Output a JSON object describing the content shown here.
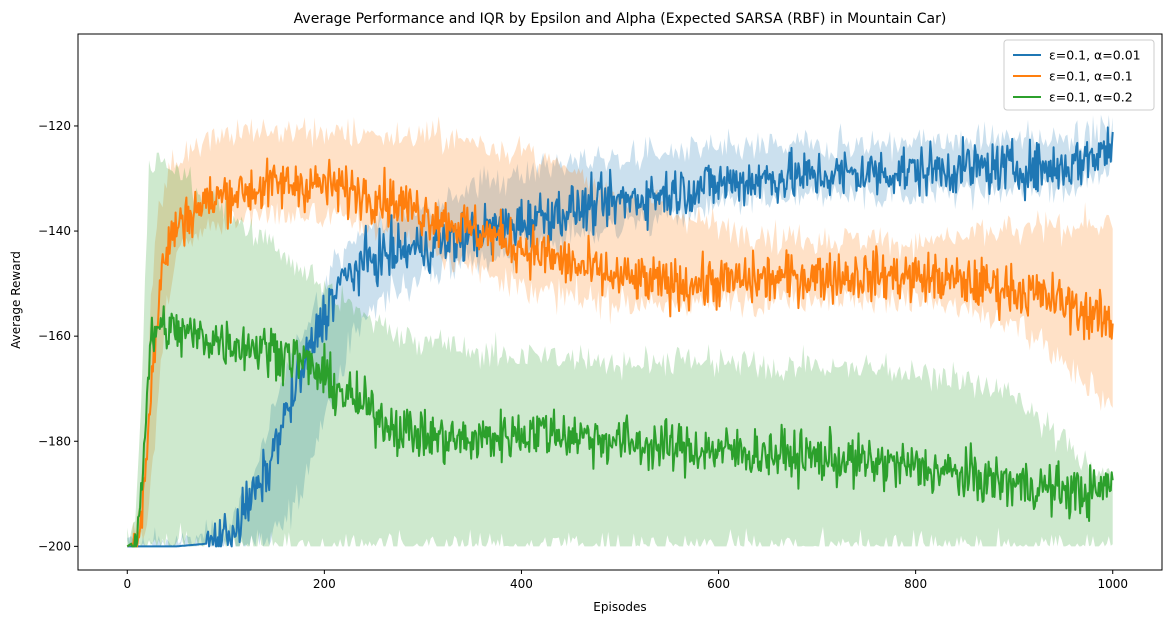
{
  "chart_data": {
    "type": "line",
    "title": "Average Performance and IQR by Epsilon and Alpha (Expected SARSA (RBF) in Mountain Car)",
    "xlabel": "Episodes",
    "ylabel": "Average Reward",
    "xlim": [
      -50,
      1050
    ],
    "ylim": [
      -204.5,
      -102.5
    ],
    "xticks": [
      0,
      200,
      400,
      600,
      800,
      1000
    ],
    "yticks": [
      -200,
      -180,
      -160,
      -140,
      -120
    ],
    "grid": false,
    "legend_position": "top-right",
    "series": [
      {
        "name": "ε=0.1, α=0.01",
        "color": "#1f77b4",
        "mean": [
          [
            0,
            -200
          ],
          [
            50,
            -200
          ],
          [
            80,
            -199.5
          ],
          [
            100,
            -198
          ],
          [
            115,
            -195
          ],
          [
            125,
            -191
          ],
          [
            140,
            -187
          ],
          [
            155,
            -178
          ],
          [
            175,
            -168
          ],
          [
            195,
            -158
          ],
          [
            215,
            -150
          ],
          [
            240,
            -146
          ],
          [
            270,
            -144
          ],
          [
            300,
            -143
          ],
          [
            330,
            -142
          ],
          [
            360,
            -140
          ],
          [
            390,
            -139
          ],
          [
            420,
            -137
          ],
          [
            450,
            -136
          ],
          [
            480,
            -135
          ],
          [
            510,
            -134
          ],
          [
            540,
            -133
          ],
          [
            570,
            -132
          ],
          [
            600,
            -131
          ],
          [
            650,
            -130
          ],
          [
            700,
            -129.5
          ],
          [
            750,
            -129
          ],
          [
            800,
            -128.5
          ],
          [
            850,
            -128
          ],
          [
            900,
            -128
          ],
          [
            950,
            -128
          ],
          [
            1000,
            -124
          ]
        ],
        "iqr_low": [
          [
            0,
            -200
          ],
          [
            60,
            -200
          ],
          [
            110,
            -200
          ],
          [
            130,
            -200
          ],
          [
            150,
            -198
          ],
          [
            175,
            -190
          ],
          [
            200,
            -175
          ],
          [
            230,
            -160
          ],
          [
            260,
            -152
          ],
          [
            300,
            -149
          ],
          [
            350,
            -146
          ],
          [
            400,
            -144
          ],
          [
            450,
            -141
          ],
          [
            500,
            -139
          ],
          [
            550,
            -137
          ],
          [
            600,
            -135
          ],
          [
            650,
            -134
          ],
          [
            700,
            -133.5
          ],
          [
            750,
            -133
          ],
          [
            800,
            -132.5
          ],
          [
            850,
            -132.5
          ],
          [
            900,
            -132
          ],
          [
            950,
            -132
          ],
          [
            1000,
            -128
          ]
        ],
        "iqr_high": [
          [
            0,
            -200
          ],
          [
            60,
            -200
          ],
          [
            100,
            -197
          ],
          [
            120,
            -190
          ],
          [
            140,
            -180
          ],
          [
            160,
            -168
          ],
          [
            185,
            -156
          ],
          [
            210,
            -146
          ],
          [
            240,
            -140
          ],
          [
            270,
            -137
          ],
          [
            300,
            -135
          ],
          [
            330,
            -133
          ],
          [
            360,
            -131
          ],
          [
            390,
            -129
          ],
          [
            420,
            -128
          ],
          [
            450,
            -127
          ],
          [
            500,
            -126
          ],
          [
            550,
            -125
          ],
          [
            600,
            -124.5
          ],
          [
            650,
            -124
          ],
          [
            700,
            -123.5
          ],
          [
            750,
            -123.5
          ],
          [
            800,
            -123
          ],
          [
            850,
            -123
          ],
          [
            900,
            -122.5
          ],
          [
            950,
            -122
          ],
          [
            1000,
            -121
          ]
        ]
      },
      {
        "name": "ε=0.1, α=0.1",
        "color": "#ff7f0e",
        "mean": [
          [
            0,
            -200
          ],
          [
            10,
            -199
          ],
          [
            15,
            -193
          ],
          [
            20,
            -180
          ],
          [
            25,
            -168
          ],
          [
            30,
            -158
          ],
          [
            35,
            -148
          ],
          [
            42,
            -142
          ],
          [
            55,
            -138
          ],
          [
            75,
            -135
          ],
          [
            100,
            -133
          ],
          [
            130,
            -132
          ],
          [
            160,
            -131
          ],
          [
            190,
            -131
          ],
          [
            220,
            -132
          ],
          [
            250,
            -133
          ],
          [
            280,
            -135
          ],
          [
            310,
            -137
          ],
          [
            340,
            -139
          ],
          [
            370,
            -141
          ],
          [
            400,
            -143
          ],
          [
            430,
            -145
          ],
          [
            460,
            -147
          ],
          [
            500,
            -149
          ],
          [
            540,
            -150
          ],
          [
            580,
            -150
          ],
          [
            620,
            -149.5
          ],
          [
            660,
            -149
          ],
          [
            700,
            -148.5
          ],
          [
            740,
            -148.5
          ],
          [
            780,
            -148.5
          ],
          [
            820,
            -149
          ],
          [
            860,
            -150
          ],
          [
            900,
            -151
          ],
          [
            940,
            -153
          ],
          [
            980,
            -156
          ],
          [
            1000,
            -158
          ]
        ],
        "iqr_low": [
          [
            0,
            -200
          ],
          [
            12,
            -200
          ],
          [
            18,
            -198
          ],
          [
            25,
            -185
          ],
          [
            32,
            -170
          ],
          [
            40,
            -155
          ],
          [
            50,
            -145
          ],
          [
            70,
            -140
          ],
          [
            100,
            -138
          ],
          [
            140,
            -137
          ],
          [
            180,
            -137
          ],
          [
            220,
            -138
          ],
          [
            260,
            -140
          ],
          [
            300,
            -143
          ],
          [
            340,
            -146
          ],
          [
            380,
            -149
          ],
          [
            420,
            -151
          ],
          [
            460,
            -153
          ],
          [
            500,
            -154
          ],
          [
            550,
            -154
          ],
          [
            600,
            -153.5
          ],
          [
            650,
            -153
          ],
          [
            700,
            -152.5
          ],
          [
            750,
            -152.5
          ],
          [
            800,
            -153
          ],
          [
            850,
            -155
          ],
          [
            900,
            -158
          ],
          [
            940,
            -163
          ],
          [
            970,
            -168
          ],
          [
            1000,
            -174
          ]
        ],
        "iqr_high": [
          [
            0,
            -200
          ],
          [
            10,
            -196
          ],
          [
            15,
            -185
          ],
          [
            20,
            -168
          ],
          [
            25,
            -150
          ],
          [
            30,
            -138
          ],
          [
            40,
            -130
          ],
          [
            55,
            -125
          ],
          [
            80,
            -122
          ],
          [
            110,
            -121
          ],
          [
            150,
            -121
          ],
          [
            200,
            -121
          ],
          [
            250,
            -121.5
          ],
          [
            300,
            -122
          ],
          [
            350,
            -123
          ],
          [
            400,
            -125
          ],
          [
            450,
            -129
          ],
          [
            500,
            -133
          ],
          [
            550,
            -136
          ],
          [
            600,
            -139
          ],
          [
            650,
            -141
          ],
          [
            700,
            -141.5
          ],
          [
            750,
            -142
          ],
          [
            800,
            -142
          ],
          [
            850,
            -141
          ],
          [
            900,
            -140
          ],
          [
            950,
            -139
          ],
          [
            1000,
            -139
          ]
        ]
      },
      {
        "name": "ε=0.1, α=0.2",
        "color": "#2ca02c",
        "mean": [
          [
            0,
            -200
          ],
          [
            8,
            -199
          ],
          [
            12,
            -194
          ],
          [
            16,
            -184
          ],
          [
            20,
            -172
          ],
          [
            24,
            -162
          ],
          [
            30,
            -158
          ],
          [
            45,
            -159
          ],
          [
            70,
            -160
          ],
          [
            100,
            -161
          ],
          [
            130,
            -162
          ],
          [
            160,
            -163
          ],
          [
            180,
            -165
          ],
          [
            200,
            -168
          ],
          [
            220,
            -171
          ],
          [
            245,
            -174
          ],
          [
            270,
            -177
          ],
          [
            300,
            -179
          ],
          [
            340,
            -180
          ],
          [
            380,
            -179
          ],
          [
            420,
            -178
          ],
          [
            460,
            -179
          ],
          [
            500,
            -180
          ],
          [
            540,
            -181
          ],
          [
            580,
            -181.5
          ],
          [
            620,
            -182
          ],
          [
            660,
            -182.5
          ],
          [
            700,
            -183
          ],
          [
            740,
            -184
          ],
          [
            780,
            -184.5
          ],
          [
            820,
            -185.5
          ],
          [
            860,
            -187
          ],
          [
            900,
            -188
          ],
          [
            940,
            -189
          ],
          [
            980,
            -190
          ],
          [
            1000,
            -188
          ]
        ],
        "iqr_low": [
          [
            0,
            -200
          ],
          [
            1000,
            -200
          ]
        ],
        "iqr_high": [
          [
            0,
            -200
          ],
          [
            8,
            -196
          ],
          [
            14,
            -175
          ],
          [
            18,
            -150
          ],
          [
            22,
            -128
          ],
          [
            30,
            -126
          ],
          [
            60,
            -130
          ],
          [
            100,
            -136
          ],
          [
            140,
            -142
          ],
          [
            180,
            -148
          ],
          [
            220,
            -154
          ],
          [
            260,
            -158
          ],
          [
            300,
            -161
          ],
          [
            350,
            -163
          ],
          [
            400,
            -164
          ],
          [
            450,
            -164
          ],
          [
            500,
            -165
          ],
          [
            550,
            -165
          ],
          [
            600,
            -165
          ],
          [
            650,
            -165.5
          ],
          [
            700,
            -166
          ],
          [
            750,
            -166
          ],
          [
            800,
            -167
          ],
          [
            850,
            -168
          ],
          [
            900,
            -172
          ],
          [
            950,
            -180
          ],
          [
            1000,
            -188
          ]
        ]
      }
    ]
  }
}
